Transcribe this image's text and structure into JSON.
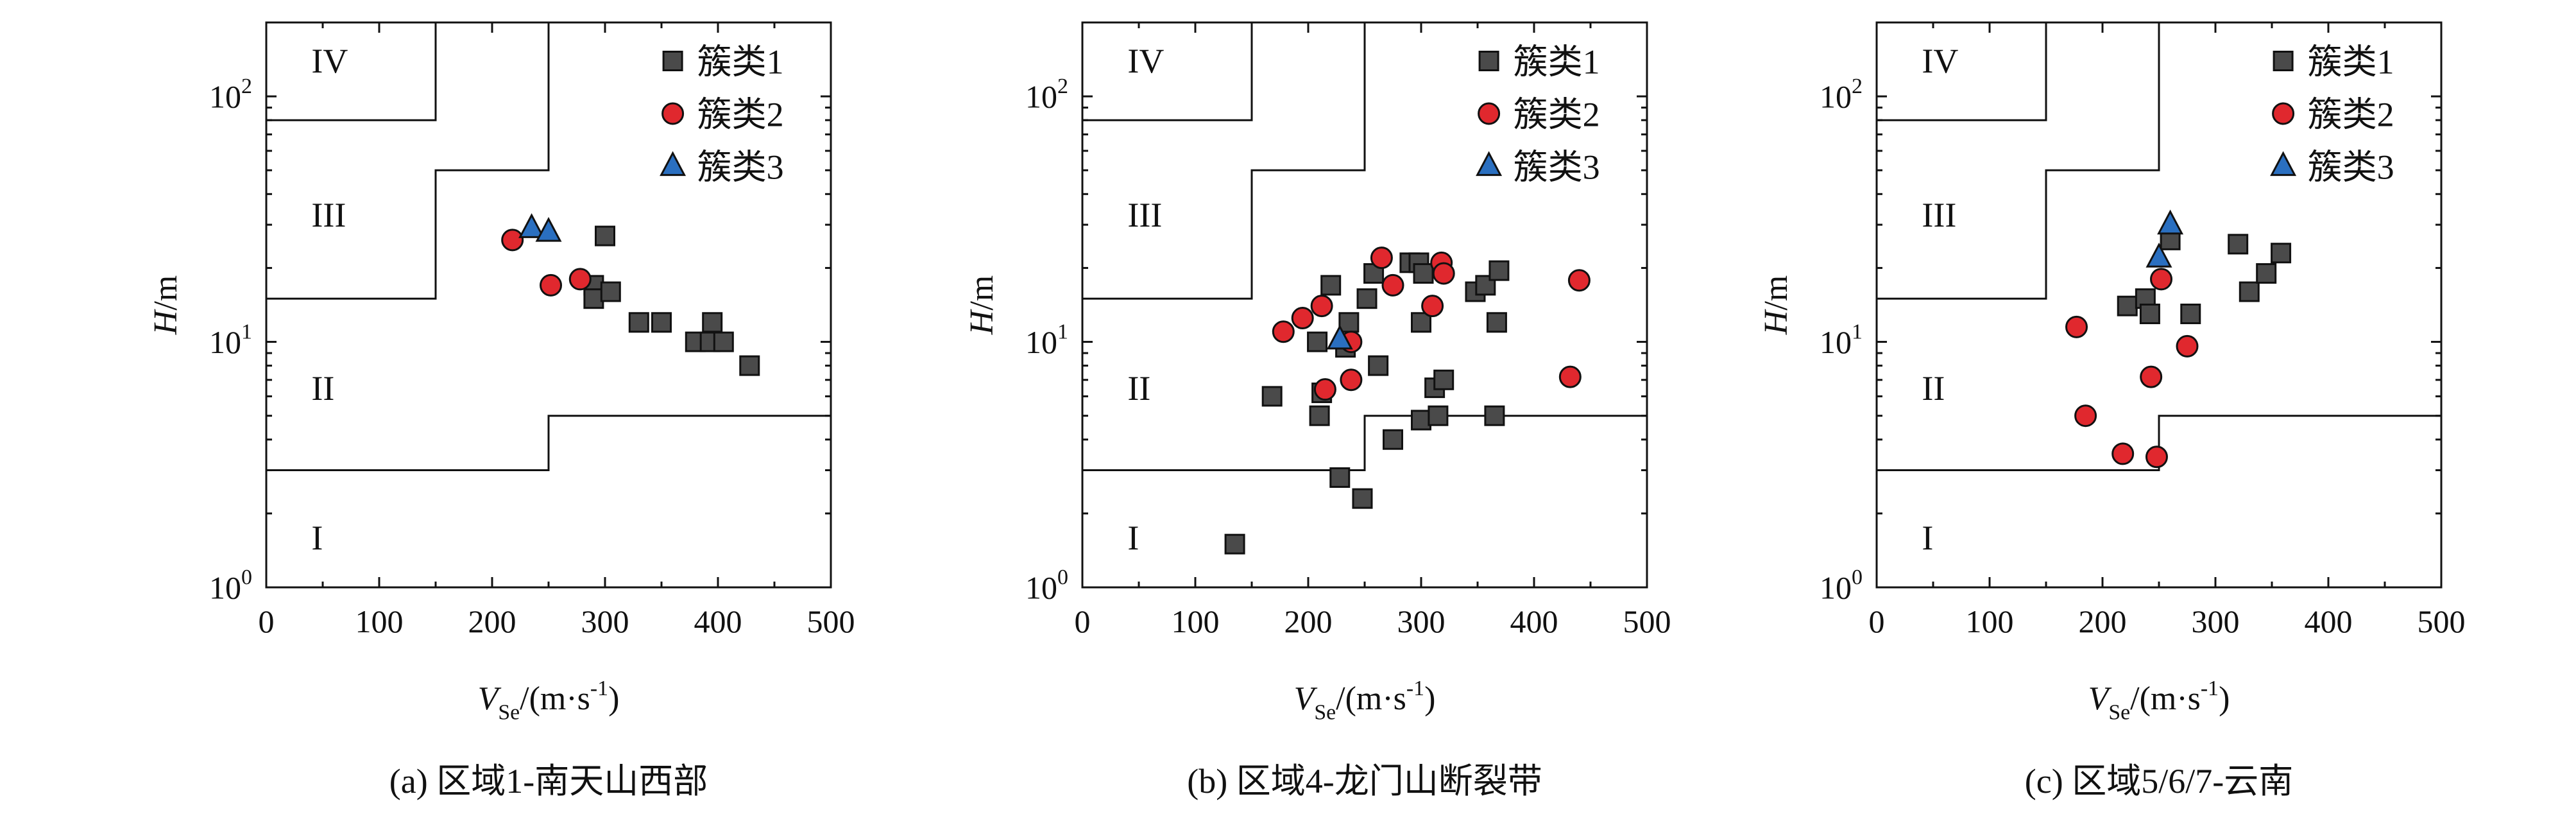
{
  "figure": {
    "captions": [
      "(a) 区域1-南天山西部",
      "(b) 区域4-龙门山断裂带",
      "(c) 区域5/6/7-云南"
    ]
  },
  "colors": {
    "cluster1": "#4a4a4a",
    "cluster2": "#e0282e",
    "cluster3": "#2a6fc0",
    "axes": "#111111"
  },
  "chart_data": [
    {
      "type": "scatter",
      "caption": "(a) 区域1-南天山西部",
      "xlabel": "V_Se/(m·s^-1)",
      "ylabel": "H/m",
      "xlim": [
        0,
        500
      ],
      "ylim": [
        1,
        200
      ],
      "yscale": "log",
      "xticks": [
        "0",
        "100",
        "200",
        "300",
        "400",
        "500"
      ],
      "yticks": [
        "10^0",
        "10^1",
        "10^2"
      ],
      "grid": false,
      "legend_position": "top-right",
      "site_class_labels": [
        "I",
        "II",
        "III",
        "IV"
      ],
      "series": [
        {
          "name": "簇类1",
          "marker": "square",
          "points": [
            [
              300,
              27
            ],
            [
              290,
              17
            ],
            [
              290,
              15
            ],
            [
              305,
              16
            ],
            [
              330,
              12
            ],
            [
              350,
              12
            ],
            [
              380,
              10
            ],
            [
              395,
              12
            ],
            [
              393,
              10
            ],
            [
              405,
              10
            ],
            [
              428,
              8
            ]
          ]
        },
        {
          "name": "簇类2",
          "marker": "circle",
          "points": [
            [
              218,
              26
            ],
            [
              252,
              17
            ],
            [
              278,
              18
            ]
          ]
        },
        {
          "name": "簇类3",
          "marker": "triangle",
          "points": [
            [
              235,
              29
            ],
            [
              250,
              28
            ]
          ]
        }
      ]
    },
    {
      "type": "scatter",
      "caption": "(b) 区域4-龙门山断裂带",
      "xlabel": "V_Se/(m·s^-1)",
      "ylabel": "H/m",
      "xlim": [
        0,
        500
      ],
      "ylim": [
        1,
        200
      ],
      "yscale": "log",
      "xticks": [
        "0",
        "100",
        "200",
        "300",
        "400",
        "500"
      ],
      "yticks": [
        "10^0",
        "10^1",
        "10^2"
      ],
      "grid": false,
      "legend_position": "top-right",
      "site_class_labels": [
        "I",
        "II",
        "III",
        "IV"
      ],
      "series": [
        {
          "name": "簇类1",
          "marker": "square",
          "points": [
            [
              135,
              1.5
            ],
            [
              168,
              6
            ],
            [
              208,
              10
            ],
            [
              210,
              5
            ],
            [
              212,
              6.2
            ],
            [
              220,
              17
            ],
            [
              228,
              2.8
            ],
            [
              233,
              9.5
            ],
            [
              236,
              12
            ],
            [
              248,
              2.3
            ],
            [
              252,
              15
            ],
            [
              258,
              19
            ],
            [
              262,
              8
            ],
            [
              275,
              4
            ],
            [
              290,
              21
            ],
            [
              298,
              21
            ],
            [
              300,
              12
            ],
            [
              302,
              19
            ],
            [
              300,
              4.8
            ],
            [
              312,
              6.5
            ],
            [
              315,
              5
            ],
            [
              320,
              7
            ],
            [
              348,
              16
            ],
            [
              357,
              17
            ],
            [
              367,
              12
            ],
            [
              369,
              19.5
            ],
            [
              365,
              5
            ]
          ]
        },
        {
          "name": "簇类2",
          "marker": "circle",
          "points": [
            [
              178,
              11
            ],
            [
              195,
              12.5
            ],
            [
              212,
              14
            ],
            [
              215,
              6.4
            ],
            [
              238,
              7
            ],
            [
              238,
              10
            ],
            [
              265,
              22
            ],
            [
              275,
              17
            ],
            [
              310,
              14
            ],
            [
              318,
              21
            ],
            [
              320,
              19
            ],
            [
              432,
              7.2
            ],
            [
              440,
              17.8
            ]
          ]
        },
        {
          "name": "簇类3",
          "marker": "triangle",
          "points": [
            [
              228,
              10.2
            ]
          ]
        }
      ]
    },
    {
      "type": "scatter",
      "caption": "(c) 区域5/6/7-云南",
      "xlabel": "V_Se/(m·s^-1)",
      "ylabel": "H/m",
      "xlim": [
        0,
        500
      ],
      "ylim": [
        1,
        200
      ],
      "yscale": "log",
      "xticks": [
        "0",
        "100",
        "200",
        "300",
        "400",
        "500"
      ],
      "yticks": [
        "10^0",
        "10^1",
        "10^2"
      ],
      "grid": false,
      "legend_position": "top-right",
      "site_class_labels": [
        "I",
        "II",
        "III",
        "IV"
      ],
      "series": [
        {
          "name": "簇类1",
          "marker": "square",
          "points": [
            [
              222,
              14
            ],
            [
              238,
              15
            ],
            [
              242,
              13
            ],
            [
              260,
              26
            ],
            [
              278,
              13
            ],
            [
              320,
              25
            ],
            [
              330,
              16
            ],
            [
              345,
              19
            ],
            [
              358,
              23
            ]
          ]
        },
        {
          "name": "簇类2",
          "marker": "circle",
          "points": [
            [
              177,
              11.5
            ],
            [
              185,
              5
            ],
            [
              218,
              3.5
            ],
            [
              243,
              7.2
            ],
            [
              248,
              3.4
            ],
            [
              252,
              18
            ],
            [
              275,
              9.6
            ]
          ]
        },
        {
          "name": "簇类3",
          "marker": "triangle",
          "points": [
            [
              250,
              22
            ],
            [
              260,
              30
            ]
          ]
        }
      ]
    }
  ]
}
